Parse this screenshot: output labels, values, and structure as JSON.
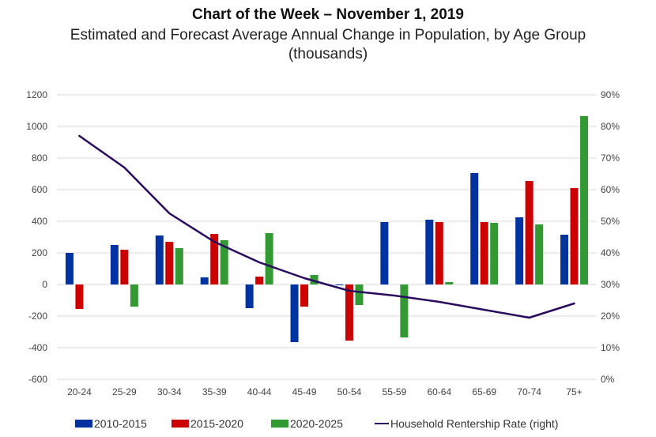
{
  "chart_data": {
    "type": "bar",
    "title": "Chart of the Week – November 1, 2019",
    "subtitle_line1": "Estimated and Forecast Average Annual Change in Population, by Age Group",
    "subtitle_line2": "(thousands)",
    "xlabel": "",
    "ylabel": "",
    "categories": [
      "20-24",
      "25-29",
      "30-34",
      "35-39",
      "40-44",
      "45-49",
      "50-54",
      "55-59",
      "60-64",
      "65-69",
      "70-74",
      "75+"
    ],
    "series": [
      {
        "name": "2010-2015",
        "type": "bar",
        "axis": "left",
        "color": "#0033A0",
        "values": [
          200,
          250,
          310,
          45,
          -150,
          -365,
          -5,
          395,
          410,
          705,
          425,
          315
        ]
      },
      {
        "name": "2015-2020",
        "type": "bar",
        "axis": "left",
        "color": "#CC0000",
        "values": [
          -155,
          220,
          270,
          320,
          50,
          -140,
          -355,
          0,
          395,
          395,
          655,
          610
        ]
      },
      {
        "name": "2020-2025",
        "type": "bar",
        "axis": "left",
        "color": "#339933",
        "values": [
          0,
          -140,
          230,
          280,
          325,
          60,
          -130,
          -335,
          15,
          390,
          380,
          1065
        ]
      },
      {
        "name": "Household Rentership Rate (right)",
        "type": "line",
        "axis": "right",
        "color": "#2A0A5E",
        "values": [
          77,
          67,
          52.5,
          43.5,
          37,
          32,
          28,
          26.5,
          24.5,
          22,
          19.5,
          24
        ]
      }
    ],
    "ylim": [
      -600,
      1200
    ],
    "yticks": [
      "1200",
      "1000",
      "800",
      "600",
      "400",
      "200",
      "0",
      "-200",
      "-400",
      "-600"
    ],
    "ytick_values": [
      1200,
      1000,
      800,
      600,
      400,
      200,
      0,
      -200,
      -400,
      -600
    ],
    "y2lim": [
      0,
      90
    ],
    "y2ticks": [
      "90%",
      "80%",
      "70%",
      "60%",
      "50%",
      "40%",
      "30%",
      "20%",
      "10%",
      "0%"
    ],
    "y2tick_values": [
      90,
      80,
      70,
      60,
      50,
      40,
      30,
      20,
      10,
      0
    ],
    "grid": true,
    "legend_position": "bottom"
  }
}
